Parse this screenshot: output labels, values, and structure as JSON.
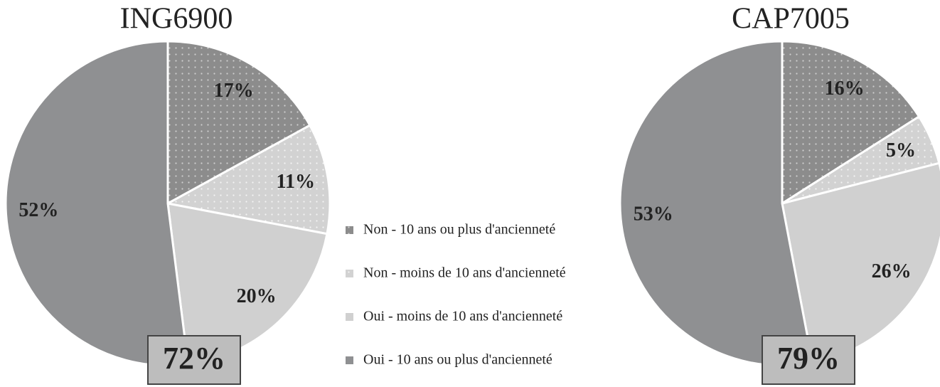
{
  "legend": {
    "labels": [
      "Non - 10 ans ou plus d'ancienneté",
      "Non - moins de 10 ans d'ancienneté",
      "Oui - moins de 10 ans d'ancienneté",
      "Oui - 10 ans ou plus d'ancienneté"
    ],
    "colors": [
      "#8c8c8c",
      "#d2d2d2",
      "#d0d0d0",
      "#8f9092"
    ],
    "patterned": [
      true,
      true,
      false,
      false
    ]
  },
  "chart_data": [
    {
      "type": "pie",
      "title": "ING6900",
      "values": [
        17,
        11,
        20,
        52
      ],
      "value_labels": [
        "17%",
        "11%",
        "20%",
        "52%"
      ],
      "annotation": "72%"
    },
    {
      "type": "pie",
      "title": "CAP7005",
      "values": [
        16,
        5,
        26,
        53
      ],
      "value_labels": [
        "16%",
        "5%",
        "26%",
        "53%"
      ],
      "annotation": "79%"
    }
  ]
}
